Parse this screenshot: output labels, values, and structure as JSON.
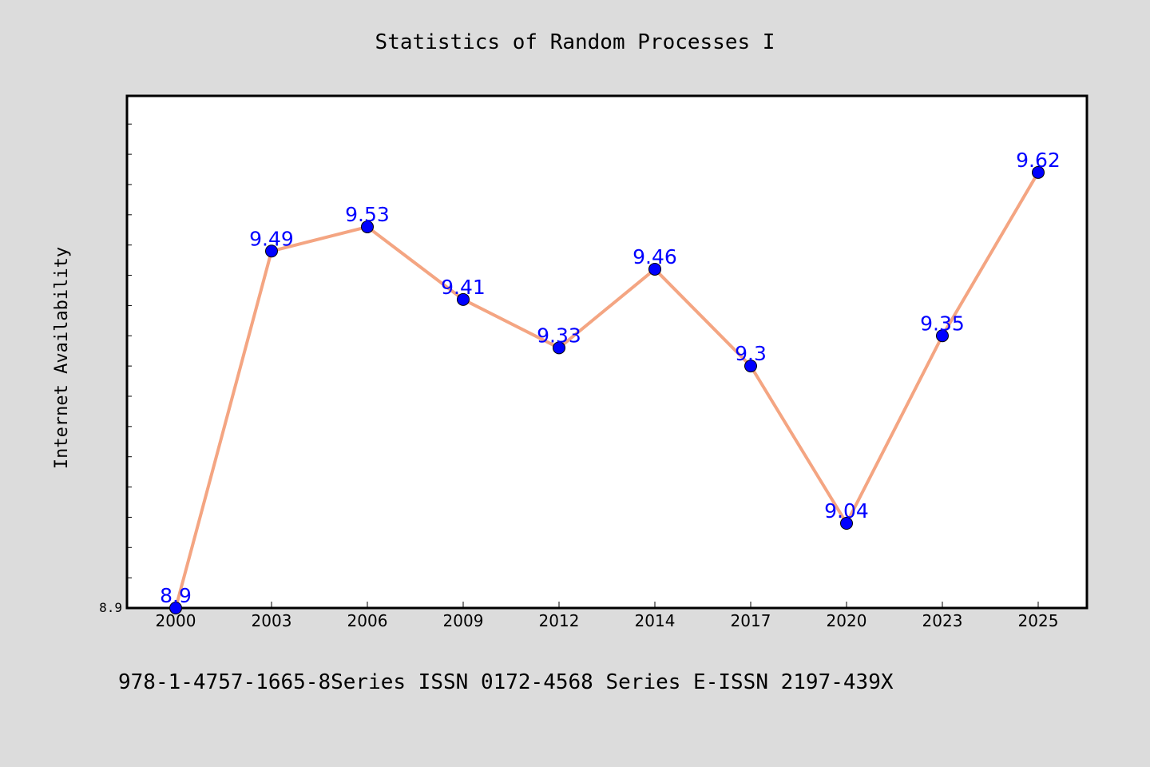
{
  "chart_data": {
    "type": "line",
    "title": "Statistics of Random Processes I",
    "xlabel": "",
    "ylabel": "Internet Availability",
    "categories": [
      "2000",
      "2003",
      "2006",
      "2009",
      "2012",
      "2014",
      "2017",
      "2020",
      "2023",
      "2025"
    ],
    "series": [
      {
        "values": [
          8.9,
          9.49,
          9.53,
          9.41,
          9.33,
          9.46,
          9.3,
          9.04,
          9.35,
          9.62
        ],
        "labels": [
          "8.9",
          "9.49",
          "9.53",
          "9.41",
          "9.33",
          "9.46",
          "9.3",
          "9.04",
          "9.35",
          "9.62"
        ],
        "line_color": "#f4a582",
        "marker_color": "#0000ff",
        "label_color": "#0000ff"
      }
    ],
    "yticks": [
      8.9
    ],
    "ytick_labels": [
      "8.9"
    ],
    "ylim": [
      8.9,
      9.75
    ],
    "grid": false,
    "legend": "none",
    "background": "#dcdcdc",
    "plot_background": "#ffffff"
  },
  "footnote": "978-1-4757-1665-8Series ISSN 0172-4568 Series E-ISSN 2197-439X"
}
